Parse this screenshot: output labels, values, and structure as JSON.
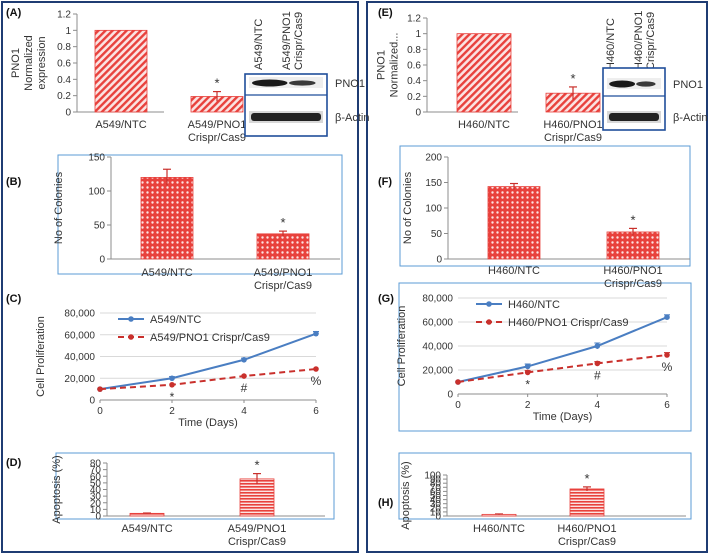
{
  "chart_data": [
    {
      "id": "A",
      "panel_label": "(A)",
      "type": "bar",
      "ylabel": [
        "PNO1",
        "Normalized",
        "expression"
      ],
      "categories": [
        "A549/NTC",
        "A549/PNO1 Crispr/Cas9"
      ],
      "category_lines": [
        [
          "A549/NTC"
        ],
        [
          "A549/PNO1",
          "Crispr/Cas9"
        ]
      ],
      "values": [
        1.0,
        0.19
      ],
      "errors": [
        0.0,
        0.06
      ],
      "ylim": [
        0,
        1.2
      ],
      "yticks": [
        0,
        0.2,
        0.4,
        0.6,
        0.8,
        1,
        1.2
      ],
      "yticklabels": [
        "0",
        "0.2",
        "0.4",
        "0.6",
        "0.8",
        "1",
        "1.2"
      ],
      "significance": [
        "",
        "*"
      ]
    },
    {
      "id": "B",
      "panel_label": "(B)",
      "type": "bar",
      "ylabel": [
        "No of Colonies"
      ],
      "categories": [
        "A549/NTC",
        "A549/PNO1 Crispr/Cas9"
      ],
      "category_lines": [
        [
          "A549/NTC"
        ],
        [
          "A549/PNO1",
          "Crispr/Cas9"
        ]
      ],
      "values": [
        120,
        37
      ],
      "errors": [
        12,
        4
      ],
      "ylim": [
        0,
        150
      ],
      "yticks": [
        0,
        50,
        100,
        150
      ],
      "yticklabels": [
        "0",
        "50",
        "100",
        "150"
      ],
      "significance": [
        "",
        "*"
      ]
    },
    {
      "id": "C",
      "panel_label": "(C)",
      "type": "line",
      "ylabel": [
        "Cell Proliferation"
      ],
      "xlabel": "Time (Days)",
      "x": [
        0,
        2,
        4,
        6
      ],
      "xlim": [
        0,
        6
      ],
      "xticks": [
        0,
        2,
        4,
        6
      ],
      "xticklabels": [
        "0",
        "2",
        "4",
        "6"
      ],
      "ylim": [
        0,
        80000
      ],
      "yticks": [
        0,
        20000,
        40000,
        60000,
        80000
      ],
      "yticklabels": [
        "0",
        "20,000",
        "40,000",
        "60,000",
        "80,000"
      ],
      "series": [
        {
          "name": "A549/NTC",
          "values": [
            10000,
            20000,
            37000,
            61000
          ],
          "errors": [
            0,
            1500,
            1500,
            2000
          ]
        },
        {
          "name": "A549/PNO1 Crispr/Cas9",
          "values": [
            10000,
            14000,
            22000,
            28500
          ],
          "errors": [
            0,
            0,
            0,
            0
          ]
        }
      ],
      "annotations": [
        {
          "x": 2,
          "text": "*"
        },
        {
          "x": 4,
          "text": "#"
        },
        {
          "x": 6,
          "text": "%"
        }
      ]
    },
    {
      "id": "D",
      "panel_label": "(D)",
      "type": "bar",
      "ylabel": [
        "Apoptosis (%)"
      ],
      "categories": [
        "A549/NTC",
        "A549/PNO1 Crispr/Cas9"
      ],
      "category_lines": [
        [
          "A549/NTC"
        ],
        [
          "A549/PNO1",
          "Crispr/Cas9"
        ]
      ],
      "values": [
        4,
        56
      ],
      "errors": [
        0.5,
        8
      ],
      "ylim": [
        0,
        80
      ],
      "yticks": [
        0,
        10,
        20,
        30,
        40,
        50,
        60,
        70,
        80
      ],
      "yticklabels": [
        "0",
        "10",
        "20",
        "30",
        "40",
        "50",
        "60",
        "70",
        "80"
      ],
      "significance": [
        "",
        "*"
      ]
    },
    {
      "id": "E",
      "panel_label": "(E)",
      "type": "bar",
      "ylabel": [
        "PNO1",
        "Normalized..."
      ],
      "categories": [
        "H460/NTC",
        "H460/PNO1 Crispr/Cas9"
      ],
      "category_lines": [
        [
          "H460/NTC"
        ],
        [
          "H460/PNO1",
          "Crispr/Cas9"
        ]
      ],
      "values": [
        1.0,
        0.24
      ],
      "errors": [
        0.0,
        0.08
      ],
      "ylim": [
        0,
        1.2
      ],
      "yticks": [
        0,
        0.2,
        0.4,
        0.6,
        0.8,
        1,
        1.2
      ],
      "yticklabels": [
        "0",
        "0.2",
        "0.4",
        "0.6",
        "0.8",
        "1",
        "1.2"
      ],
      "significance": [
        "",
        "*"
      ]
    },
    {
      "id": "F",
      "panel_label": "(F)",
      "type": "bar",
      "ylabel": [
        "No of Colonies"
      ],
      "categories": [
        "H460/NTC",
        "H460/PNO1 Crispr/Cas9"
      ],
      "category_lines": [
        [
          "H460/NTC"
        ],
        [
          "H460/PNO1",
          "Crispr/Cas9"
        ]
      ],
      "values": [
        142,
        53
      ],
      "errors": [
        6,
        7
      ],
      "ylim": [
        0,
        200
      ],
      "yticks": [
        0,
        50,
        100,
        150,
        200
      ],
      "yticklabels": [
        "0",
        "50",
        "100",
        "150",
        "200"
      ],
      "significance": [
        "",
        "*"
      ]
    },
    {
      "id": "G",
      "panel_label": "(G)",
      "type": "line",
      "ylabel": [
        "Cell Proliferation"
      ],
      "xlabel": "Time (Days)",
      "x": [
        0,
        2,
        4,
        6
      ],
      "xlim": [
        0,
        6
      ],
      "xticks": [
        0,
        2,
        4,
        6
      ],
      "xticklabels": [
        "0",
        "2",
        "4",
        "6"
      ],
      "ylim": [
        0,
        80000
      ],
      "yticks": [
        0,
        20000,
        40000,
        60000,
        80000
      ],
      "yticklabels": [
        "0",
        "20,000",
        "40,000",
        "60,000",
        "80,000"
      ],
      "series": [
        {
          "name": "H460/NTC",
          "values": [
            10000,
            23000,
            40000,
            64000
          ],
          "errors": [
            0,
            2000,
            2500,
            2000
          ]
        },
        {
          "name": "H460/PNO1 Crispr/Cas9",
          "values": [
            10000,
            18000,
            25500,
            32500
          ],
          "errors": [
            0,
            1500,
            1500,
            2000
          ]
        }
      ],
      "annotations": [
        {
          "x": 2,
          "text": "*"
        },
        {
          "x": 4,
          "text": "#"
        },
        {
          "x": 6,
          "text": "%"
        }
      ]
    },
    {
      "id": "H",
      "panel_label": "(H)",
      "type": "bar",
      "ylabel": [
        "Apoptosis (%)"
      ],
      "categories": [
        "H460/NTC",
        "H460/PNO1 Crispr/Cas9"
      ],
      "category_lines": [
        [
          "H460/NTC"
        ],
        [
          "H460/PNO1",
          "Crispr/Cas9"
        ]
      ],
      "values": [
        4,
        66
      ],
      "errors": [
        1,
        5
      ],
      "ylim": [
        0,
        100
      ],
      "yticks": [
        0,
        10,
        20,
        30,
        40,
        50,
        60,
        70,
        80,
        90,
        100
      ],
      "yticklabels": [
        "0",
        "10",
        "20",
        "30",
        "40",
        "50",
        "60",
        "70",
        "80",
        "90",
        "100"
      ],
      "significance": [
        "",
        "*"
      ]
    }
  ],
  "blots": [
    {
      "id": "A",
      "lanes": [
        "A549/NTC",
        "A549/PNO1 Crispr/Cas9"
      ],
      "lane_lines": [
        [
          "A549/NTC"
        ],
        [
          "A549/PNO1",
          "Crispr/Cas9"
        ]
      ],
      "bands": [
        "PNO1",
        "β-Actin"
      ]
    },
    {
      "id": "E",
      "lanes": [
        "H460/NTC",
        "H460/PNO1 Crispr/Cas9"
      ],
      "lane_lines": [
        [
          "H460/NTC"
        ],
        [
          "H460/PNO1",
          "Crispr/Cas9"
        ]
      ],
      "bands": [
        "PNO1",
        "β-Actin"
      ]
    }
  ],
  "colors": {
    "bar_fill": "#e8413c",
    "bar_pattern_bg": "#fbe3e2",
    "ntc_line": "#4a7ec2",
    "crispr_line": "#c9302c",
    "error_bar": "#c9302c",
    "panel_border": "#1f3c73",
    "box_border": "#5b9bd5",
    "axis": "#8c8c8c",
    "grid": "#d9d9d9",
    "text": "#333333"
  }
}
